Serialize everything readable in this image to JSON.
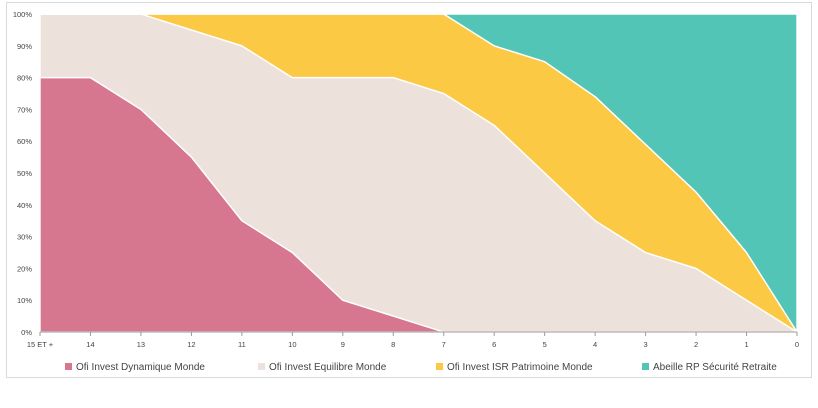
{
  "chart_data": {
    "type": "area",
    "stacked": true,
    "normalized_percent": true,
    "categories": [
      "15 ET +",
      "14",
      "13",
      "12",
      "11",
      "10",
      "9",
      "8",
      "7",
      "6",
      "5",
      "4",
      "3",
      "2",
      "1",
      "0"
    ],
    "y_ticks": [
      "0%",
      "10%",
      "20%",
      "30%",
      "40%",
      "50%",
      "60%",
      "70%",
      "80%",
      "90%",
      "100%"
    ],
    "ylim": [
      0,
      100
    ],
    "grid": false,
    "legend_position": "bottom",
    "series": [
      {
        "name": "Ofi Invest Dynamique Monde",
        "color": "#d6778f",
        "values": [
          80,
          80,
          70,
          55,
          35,
          25,
          10,
          5,
          0,
          0,
          0,
          0,
          0,
          0,
          0,
          0
        ]
      },
      {
        "name": "Ofi Invest Equilibre Monde",
        "color": "#ede1dc",
        "values": [
          20,
          20,
          30,
          40,
          55,
          55,
          70,
          75,
          75,
          65,
          50,
          35,
          25,
          20,
          10,
          0
        ]
      },
      {
        "name": "Ofi Invest ISR Patrimoine Monde",
        "color": "#fbc944",
        "values": [
          0,
          0,
          0,
          5,
          10,
          20,
          20,
          20,
          25,
          25,
          35,
          39,
          34,
          24,
          15,
          0
        ]
      },
      {
        "name": "Abeille RP Sécurité Retraite",
        "color": "#52c5b6",
        "values": [
          0,
          0,
          0,
          0,
          0,
          0,
          0,
          0,
          0,
          10,
          15,
          26,
          41,
          56,
          75,
          100
        ]
      }
    ]
  }
}
